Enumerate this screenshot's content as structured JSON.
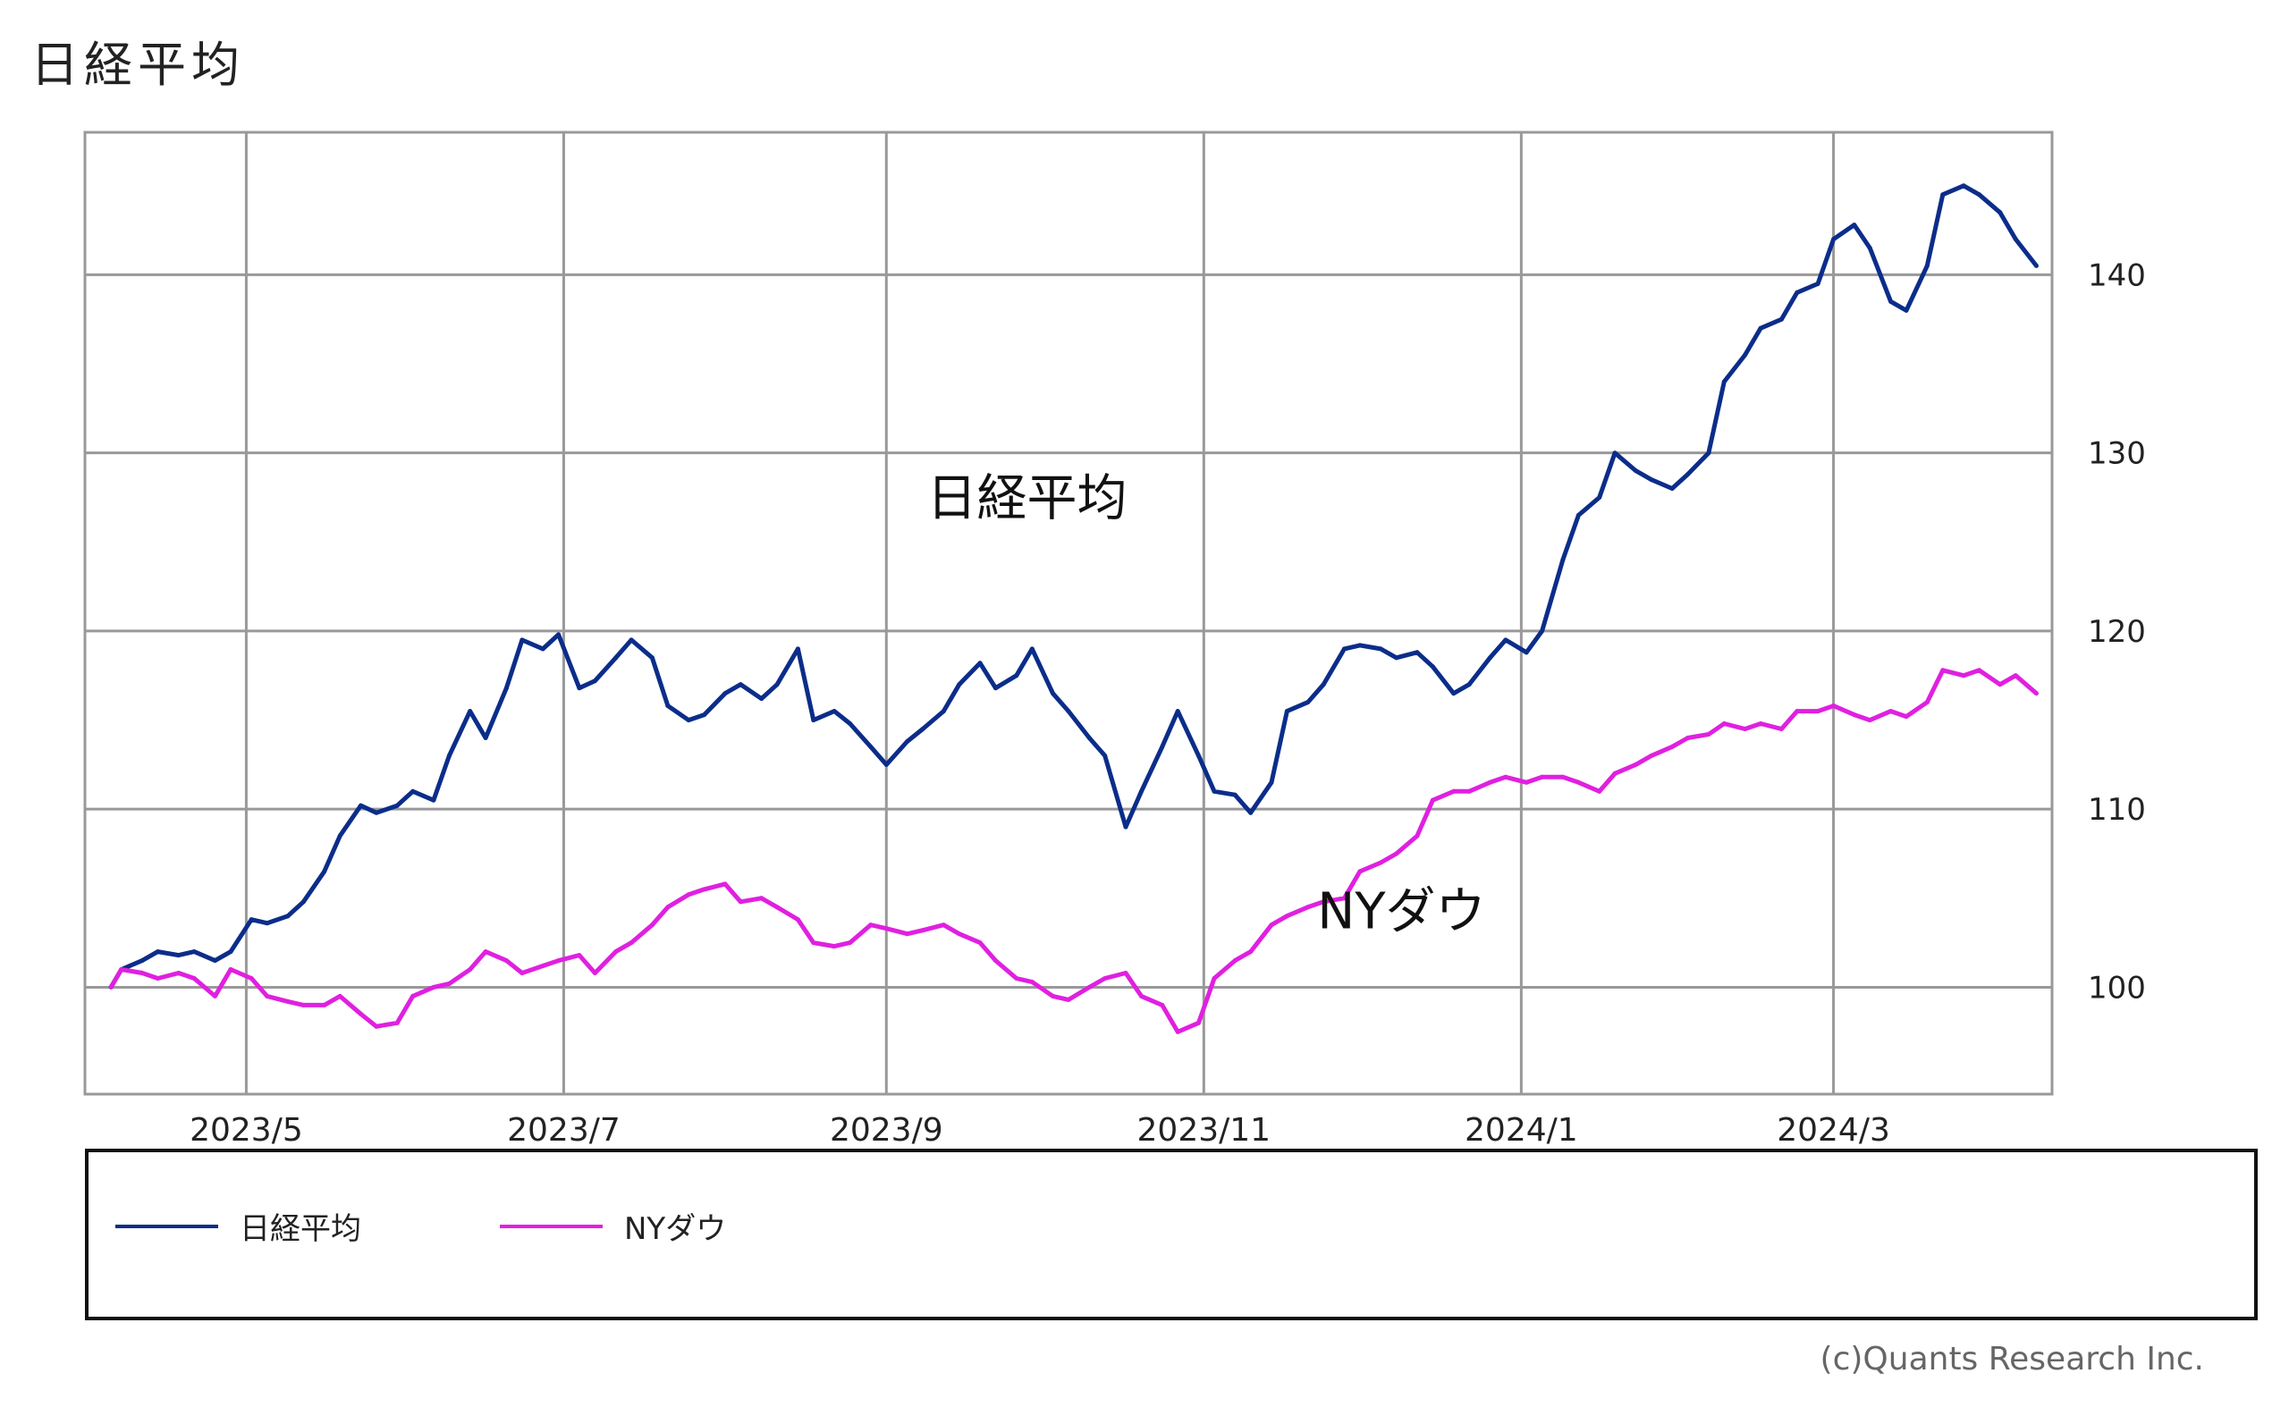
{
  "title": "日経平均",
  "credit": "(c)Quants Research Inc.",
  "chart_data": {
    "type": "line",
    "y_axis": {
      "side": "right",
      "ylim": [
        94,
        148
      ],
      "ticks": [
        100,
        110,
        120,
        130,
        140
      ]
    },
    "x_axis": {
      "range": [
        "2023-03-31",
        "2024-04-12"
      ],
      "ticks": [
        {
          "date": "2023-05-01",
          "label": "2023/5"
        },
        {
          "date": "2023-07-01",
          "label": "2023/7"
        },
        {
          "date": "2023-09-01",
          "label": "2023/9"
        },
        {
          "date": "2023-11-01",
          "label": "2023/11"
        },
        {
          "date": "2024-01-01",
          "label": "2024/1"
        },
        {
          "date": "2024-03-01",
          "label": "2024/3"
        }
      ]
    },
    "grid": true,
    "legend_position": "bottom",
    "annotations": [
      {
        "text": "日経平均",
        "date": "2023-09-28",
        "value": 126.5
      },
      {
        "text": "NYダウ",
        "date": "2023-12-09",
        "value": 103.3
      }
    ],
    "series": [
      {
        "name": "日経平均",
        "color": "#0b2d8a",
        "points": [
          [
            "2023-04-05",
            100.0
          ],
          [
            "2023-04-07",
            101.0
          ],
          [
            "2023-04-11",
            101.5
          ],
          [
            "2023-04-14",
            102.0
          ],
          [
            "2023-04-18",
            101.8
          ],
          [
            "2023-04-21",
            102.0
          ],
          [
            "2023-04-25",
            101.5
          ],
          [
            "2023-04-28",
            102.0
          ],
          [
            "2023-05-02",
            103.8
          ],
          [
            "2023-05-05",
            103.6
          ],
          [
            "2023-05-09",
            104.0
          ],
          [
            "2023-05-12",
            104.8
          ],
          [
            "2023-05-16",
            106.5
          ],
          [
            "2023-05-19",
            108.5
          ],
          [
            "2023-05-23",
            110.2
          ],
          [
            "2023-05-26",
            109.8
          ],
          [
            "2023-05-30",
            110.2
          ],
          [
            "2023-06-02",
            111.0
          ],
          [
            "2023-06-06",
            110.5
          ],
          [
            "2023-06-09",
            113.0
          ],
          [
            "2023-06-13",
            115.5
          ],
          [
            "2023-06-16",
            114.0
          ],
          [
            "2023-06-20",
            116.8
          ],
          [
            "2023-06-23",
            119.5
          ],
          [
            "2023-06-27",
            119.0
          ],
          [
            "2023-06-30",
            119.8
          ],
          [
            "2023-07-04",
            116.8
          ],
          [
            "2023-07-07",
            117.2
          ],
          [
            "2023-07-11",
            118.5
          ],
          [
            "2023-07-14",
            119.5
          ],
          [
            "2023-07-18",
            118.5
          ],
          [
            "2023-07-21",
            115.8
          ],
          [
            "2023-07-25",
            115.0
          ],
          [
            "2023-07-28",
            115.3
          ],
          [
            "2023-08-01",
            116.5
          ],
          [
            "2023-08-04",
            117.0
          ],
          [
            "2023-08-08",
            116.2
          ],
          [
            "2023-08-11",
            117.0
          ],
          [
            "2023-08-15",
            119.0
          ],
          [
            "2023-08-18",
            115.0
          ],
          [
            "2023-08-22",
            115.5
          ],
          [
            "2023-08-25",
            114.8
          ],
          [
            "2023-08-29",
            113.5
          ],
          [
            "2023-09-01",
            112.5
          ],
          [
            "2023-09-05",
            113.8
          ],
          [
            "2023-09-08",
            114.5
          ],
          [
            "2023-09-12",
            115.5
          ],
          [
            "2023-09-15",
            117.0
          ],
          [
            "2023-09-19",
            118.2
          ],
          [
            "2023-09-22",
            116.8
          ],
          [
            "2023-09-26",
            117.5
          ],
          [
            "2023-09-29",
            119.0
          ],
          [
            "2023-10-03",
            116.5
          ],
          [
            "2023-10-06",
            115.5
          ],
          [
            "2023-10-10",
            114.0
          ],
          [
            "2023-10-13",
            113.0
          ],
          [
            "2023-10-17",
            109.0
          ],
          [
            "2023-10-20",
            111.0
          ],
          [
            "2023-10-24",
            113.5
          ],
          [
            "2023-10-27",
            115.5
          ],
          [
            "2023-10-31",
            113.0
          ],
          [
            "2023-11-03",
            111.0
          ],
          [
            "2023-11-07",
            110.8
          ],
          [
            "2023-11-10",
            109.8
          ],
          [
            "2023-11-14",
            111.5
          ],
          [
            "2023-11-17",
            115.5
          ],
          [
            "2023-11-21",
            116.0
          ],
          [
            "2023-11-24",
            117.0
          ],
          [
            "2023-11-28",
            119.0
          ],
          [
            "2023-12-01",
            119.2
          ],
          [
            "2023-12-05",
            119.0
          ],
          [
            "2023-12-08",
            118.5
          ],
          [
            "2023-12-12",
            118.8
          ],
          [
            "2023-12-15",
            118.0
          ],
          [
            "2023-12-19",
            116.5
          ],
          [
            "2023-12-22",
            117.0
          ],
          [
            "2023-12-26",
            118.5
          ],
          [
            "2023-12-29",
            119.5
          ],
          [
            "2024-01-02",
            118.8
          ],
          [
            "2024-01-05",
            120.0
          ],
          [
            "2024-01-09",
            124.0
          ],
          [
            "2024-01-12",
            126.5
          ],
          [
            "2024-01-16",
            127.5
          ],
          [
            "2024-01-19",
            130.0
          ],
          [
            "2024-01-23",
            129.0
          ],
          [
            "2024-01-26",
            128.5
          ],
          [
            "2024-01-30",
            128.0
          ],
          [
            "2024-02-02",
            128.8
          ],
          [
            "2024-02-06",
            130.0
          ],
          [
            "2024-02-09",
            134.0
          ],
          [
            "2024-02-13",
            135.5
          ],
          [
            "2024-02-16",
            137.0
          ],
          [
            "2024-02-20",
            137.5
          ],
          [
            "2024-02-23",
            139.0
          ],
          [
            "2024-02-27",
            139.5
          ],
          [
            "2024-03-01",
            142.0
          ],
          [
            "2024-03-05",
            142.8
          ],
          [
            "2024-03-08",
            141.5
          ],
          [
            "2024-03-12",
            138.5
          ],
          [
            "2024-03-15",
            138.0
          ],
          [
            "2024-03-19",
            140.5
          ],
          [
            "2024-03-22",
            144.5
          ],
          [
            "2024-03-26",
            145.0
          ],
          [
            "2024-03-29",
            144.5
          ],
          [
            "2024-04-02",
            143.5
          ],
          [
            "2024-04-05",
            142.0
          ],
          [
            "2024-04-09",
            140.5
          ]
        ]
      },
      {
        "name": "NYダウ",
        "color": "#e020e0",
        "points": [
          [
            "2023-04-05",
            100.0
          ],
          [
            "2023-04-07",
            101.0
          ],
          [
            "2023-04-11",
            100.8
          ],
          [
            "2023-04-14",
            100.5
          ],
          [
            "2023-04-18",
            100.8
          ],
          [
            "2023-04-21",
            100.5
          ],
          [
            "2023-04-25",
            99.5
          ],
          [
            "2023-04-28",
            101.0
          ],
          [
            "2023-05-02",
            100.5
          ],
          [
            "2023-05-05",
            99.5
          ],
          [
            "2023-05-09",
            99.2
          ],
          [
            "2023-05-12",
            99.0
          ],
          [
            "2023-05-16",
            99.0
          ],
          [
            "2023-05-19",
            99.5
          ],
          [
            "2023-05-23",
            98.5
          ],
          [
            "2023-05-26",
            97.8
          ],
          [
            "2023-05-30",
            98.0
          ],
          [
            "2023-06-02",
            99.5
          ],
          [
            "2023-06-06",
            100.0
          ],
          [
            "2023-06-09",
            100.2
          ],
          [
            "2023-06-13",
            101.0
          ],
          [
            "2023-06-16",
            102.0
          ],
          [
            "2023-06-20",
            101.5
          ],
          [
            "2023-06-23",
            100.8
          ],
          [
            "2023-06-27",
            101.2
          ],
          [
            "2023-06-30",
            101.5
          ],
          [
            "2023-07-04",
            101.8
          ],
          [
            "2023-07-07",
            100.8
          ],
          [
            "2023-07-11",
            102.0
          ],
          [
            "2023-07-14",
            102.5
          ],
          [
            "2023-07-18",
            103.5
          ],
          [
            "2023-07-21",
            104.5
          ],
          [
            "2023-07-25",
            105.2
          ],
          [
            "2023-07-28",
            105.5
          ],
          [
            "2023-08-01",
            105.8
          ],
          [
            "2023-08-04",
            104.8
          ],
          [
            "2023-08-08",
            105.0
          ],
          [
            "2023-08-11",
            104.5
          ],
          [
            "2023-08-15",
            103.8
          ],
          [
            "2023-08-18",
            102.5
          ],
          [
            "2023-08-22",
            102.3
          ],
          [
            "2023-08-25",
            102.5
          ],
          [
            "2023-08-29",
            103.5
          ],
          [
            "2023-09-01",
            103.3
          ],
          [
            "2023-09-05",
            103.0
          ],
          [
            "2023-09-08",
            103.2
          ],
          [
            "2023-09-12",
            103.5
          ],
          [
            "2023-09-15",
            103.0
          ],
          [
            "2023-09-19",
            102.5
          ],
          [
            "2023-09-22",
            101.5
          ],
          [
            "2023-09-26",
            100.5
          ],
          [
            "2023-09-29",
            100.3
          ],
          [
            "2023-10-03",
            99.5
          ],
          [
            "2023-10-06",
            99.3
          ],
          [
            "2023-10-10",
            100.0
          ],
          [
            "2023-10-13",
            100.5
          ],
          [
            "2023-10-17",
            100.8
          ],
          [
            "2023-10-20",
            99.5
          ],
          [
            "2023-10-24",
            99.0
          ],
          [
            "2023-10-27",
            97.5
          ],
          [
            "2023-10-31",
            98.0
          ],
          [
            "2023-11-03",
            100.5
          ],
          [
            "2023-11-07",
            101.5
          ],
          [
            "2023-11-10",
            102.0
          ],
          [
            "2023-11-14",
            103.5
          ],
          [
            "2023-11-17",
            104.0
          ],
          [
            "2023-11-21",
            104.5
          ],
          [
            "2023-11-24",
            104.8
          ],
          [
            "2023-11-28",
            105.0
          ],
          [
            "2023-12-01",
            106.5
          ],
          [
            "2023-12-05",
            107.0
          ],
          [
            "2023-12-08",
            107.5
          ],
          [
            "2023-12-12",
            108.5
          ],
          [
            "2023-12-15",
            110.5
          ],
          [
            "2023-12-19",
            111.0
          ],
          [
            "2023-12-22",
            111.0
          ],
          [
            "2023-12-26",
            111.5
          ],
          [
            "2023-12-29",
            111.8
          ],
          [
            "2024-01-02",
            111.5
          ],
          [
            "2024-01-05",
            111.8
          ],
          [
            "2024-01-09",
            111.8
          ],
          [
            "2024-01-12",
            111.5
          ],
          [
            "2024-01-16",
            111.0
          ],
          [
            "2024-01-19",
            112.0
          ],
          [
            "2024-01-23",
            112.5
          ],
          [
            "2024-01-26",
            113.0
          ],
          [
            "2024-01-30",
            113.5
          ],
          [
            "2024-02-02",
            114.0
          ],
          [
            "2024-02-06",
            114.2
          ],
          [
            "2024-02-09",
            114.8
          ],
          [
            "2024-02-13",
            114.5
          ],
          [
            "2024-02-16",
            114.8
          ],
          [
            "2024-02-20",
            114.5
          ],
          [
            "2024-02-23",
            115.5
          ],
          [
            "2024-02-27",
            115.5
          ],
          [
            "2024-03-01",
            115.8
          ],
          [
            "2024-03-05",
            115.3
          ],
          [
            "2024-03-08",
            115.0
          ],
          [
            "2024-03-12",
            115.5
          ],
          [
            "2024-03-15",
            115.2
          ],
          [
            "2024-03-19",
            116.0
          ],
          [
            "2024-03-22",
            117.8
          ],
          [
            "2024-03-26",
            117.5
          ],
          [
            "2024-03-29",
            117.8
          ],
          [
            "2024-04-02",
            117.0
          ],
          [
            "2024-04-05",
            117.5
          ],
          [
            "2024-04-09",
            116.5
          ]
        ]
      }
    ]
  }
}
